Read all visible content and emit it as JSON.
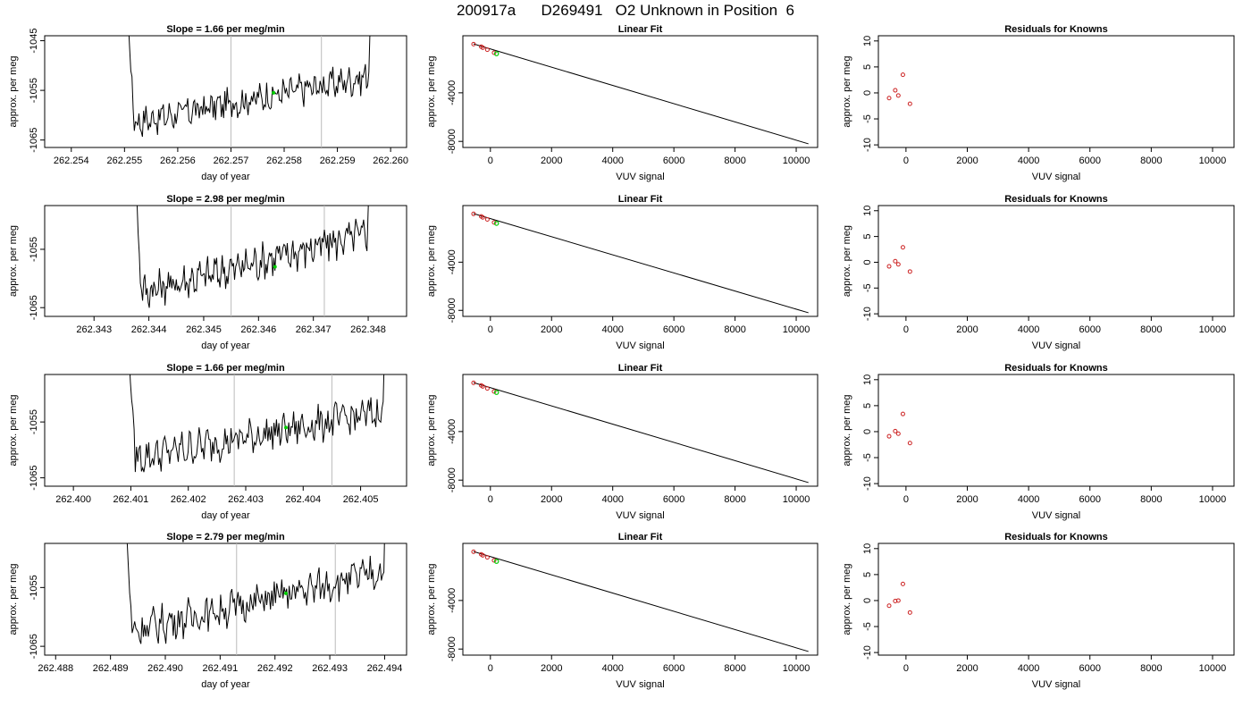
{
  "title": "200917a      D269491   O2 Unknown in Position  6",
  "colors": {
    "axis": "#000000",
    "line": "#000000",
    "marker_green": "#00cc00",
    "point_red": "#cc2222",
    "vline": "#bbbbbb"
  },
  "rows": [
    {
      "slope_title": "Slope =  1.66  per meg/min",
      "time_series": {
        "type": "line",
        "xlabel": "day of year",
        "ylabel": "approx. per meg",
        "xlim": [
          262.2535,
          262.2603
        ],
        "ylim": [
          -1066.5,
          -1044
        ],
        "xticks": [
          "262.254",
          "262.255",
          "262.256",
          "262.257",
          "262.258",
          "262.259",
          "262.260"
        ],
        "yticks": [
          "-1065",
          "-1055",
          "-1045"
        ],
        "x_start": 262.2549,
        "x_end": 262.2597,
        "start_level": -1062,
        "end_level": -1052,
        "vlines": [
          262.257,
          262.2587
        ],
        "marker": {
          "x": 262.2578,
          "y": -1055.5
        }
      },
      "linear_fit": {
        "type": "scatter",
        "title": "Linear Fit",
        "xlabel": "VUV signal",
        "ylabel": "approx. per meg",
        "xlim": [
          -900,
          10700
        ],
        "ylim": [
          -8500,
          700
        ],
        "xticks": [
          0,
          2000,
          4000,
          6000,
          8000,
          10000
        ],
        "yticks": [
          -8000,
          -4000
        ],
        "points": [
          [
            -550,
            10
          ],
          [
            -300,
            -200
          ],
          [
            -250,
            -280
          ],
          [
            -100,
            -450
          ],
          [
            120,
            -700
          ]
        ],
        "green_point": [
          200,
          -780
        ],
        "line": [
          [
            -550,
            30
          ],
          [
            10400,
            -8200
          ]
        ]
      },
      "residuals": {
        "type": "scatter",
        "title": "Residuals for Knowns",
        "xlabel": "VUV signal",
        "ylabel": "approx. per meg",
        "xlim": [
          -900,
          10700
        ],
        "ylim": [
          -10.5,
          11
        ],
        "xticks": [
          0,
          2000,
          4000,
          6000,
          8000,
          10000
        ],
        "yticks": [
          -10,
          -5,
          0,
          5,
          10
        ],
        "points": [
          [
            -550,
            -1.0
          ],
          [
            -350,
            0.5
          ],
          [
            -250,
            -0.5
          ],
          [
            -100,
            3.5
          ],
          [
            130,
            -2.1
          ]
        ]
      }
    },
    {
      "slope_title": "Slope =  2.98  per meg/min",
      "time_series": {
        "type": "line",
        "xlabel": "day of year",
        "ylabel": "approx. per meg",
        "xlim": [
          262.3421,
          262.3487
        ],
        "ylim": [
          -1066.5,
          -1047.5
        ],
        "xticks": [
          "262.343",
          "262.344",
          "262.345",
          "262.346",
          "262.347",
          "262.348"
        ],
        "yticks": [
          "-1065",
          "-1055"
        ],
        "x_start": 262.3436,
        "x_end": 262.3481,
        "start_level": -1063,
        "end_level": -1052,
        "vlines": [
          262.3455,
          262.3472
        ],
        "marker": {
          "x": 262.3463,
          "y": -1058
        }
      },
      "linear_fit": {
        "type": "scatter",
        "title": "Linear Fit",
        "xlabel": "VUV signal",
        "ylabel": "approx. per meg",
        "xlim": [
          -900,
          10700
        ],
        "ylim": [
          -8500,
          700
        ],
        "xticks": [
          0,
          2000,
          4000,
          6000,
          8000,
          10000
        ],
        "yticks": [
          -8000,
          -4000
        ],
        "points": [
          [
            -550,
            10
          ],
          [
            -300,
            -200
          ],
          [
            -250,
            -280
          ],
          [
            -100,
            -450
          ],
          [
            120,
            -700
          ]
        ],
        "green_point": [
          200,
          -780
        ],
        "line": [
          [
            -550,
            30
          ],
          [
            10400,
            -8200
          ]
        ]
      },
      "residuals": {
        "type": "scatter",
        "title": "Residuals for Knowns",
        "xlabel": "VUV signal",
        "ylabel": "approx. per meg",
        "xlim": [
          -900,
          10700
        ],
        "ylim": [
          -10.5,
          11
        ],
        "xticks": [
          0,
          2000,
          4000,
          6000,
          8000,
          10000
        ],
        "yticks": [
          -10,
          -5,
          0,
          5,
          10
        ],
        "points": [
          [
            -550,
            -0.8
          ],
          [
            -350,
            0.2
          ],
          [
            -250,
            -0.4
          ],
          [
            -100,
            2.9
          ],
          [
            130,
            -1.8
          ]
        ]
      }
    },
    {
      "slope_title": "Slope =  1.66  per meg/min",
      "time_series": {
        "type": "line",
        "xlabel": "day of year",
        "ylabel": "approx. per meg",
        "xlim": [
          262.3995,
          262.4058
        ],
        "ylim": [
          -1066.5,
          -1046.5
        ],
        "xticks": [
          "262.400",
          "262.401",
          "262.402",
          "262.403",
          "262.404",
          "262.405"
        ],
        "yticks": [
          "-1065",
          "-1055"
        ],
        "x_start": 262.4008,
        "x_end": 262.4055,
        "start_level": -1062,
        "end_level": -1053,
        "vlines": [
          262.4028,
          262.4045
        ],
        "marker": {
          "x": 262.4037,
          "y": -1056
        }
      },
      "linear_fit": {
        "type": "scatter",
        "title": "Linear Fit",
        "xlabel": "VUV signal",
        "ylabel": "approx. per meg",
        "xlim": [
          -900,
          10700
        ],
        "ylim": [
          -8500,
          700
        ],
        "xticks": [
          0,
          2000,
          4000,
          6000,
          8000,
          10000
        ],
        "yticks": [
          -8000,
          -4000
        ],
        "points": [
          [
            -550,
            10
          ],
          [
            -300,
            -200
          ],
          [
            -250,
            -280
          ],
          [
            -100,
            -450
          ],
          [
            120,
            -700
          ]
        ],
        "green_point": [
          200,
          -780
        ],
        "line": [
          [
            -550,
            30
          ],
          [
            10400,
            -8200
          ]
        ]
      },
      "residuals": {
        "type": "scatter",
        "title": "Residuals for Knowns",
        "xlabel": "VUV signal",
        "ylabel": "approx. per meg",
        "xlim": [
          -900,
          10700
        ],
        "ylim": [
          -10.5,
          11
        ],
        "xticks": [
          0,
          2000,
          4000,
          6000,
          8000,
          10000
        ],
        "yticks": [
          -10,
          -5,
          0,
          5,
          10
        ],
        "points": [
          [
            -550,
            -0.9
          ],
          [
            -350,
            0.1
          ],
          [
            -250,
            -0.4
          ],
          [
            -100,
            3.4
          ],
          [
            130,
            -2.2
          ]
        ]
      }
    },
    {
      "slope_title": "Slope =  2.79  per meg/min",
      "time_series": {
        "type": "line",
        "xlabel": "day of year",
        "ylabel": "approx. per meg",
        "xlim": [
          262.4878,
          262.4944
        ],
        "ylim": [
          -1066.5,
          -1047.5
        ],
        "xticks": [
          "262.488",
          "262.489",
          "262.490",
          "262.491",
          "262.492",
          "262.493",
          "262.494"
        ],
        "yticks": [
          "-1065",
          "-1055"
        ],
        "x_start": 262.4891,
        "x_end": 262.4941,
        "start_level": -1063,
        "end_level": -1052,
        "vlines": [
          262.4913,
          262.4931
        ],
        "marker": {
          "x": 262.4922,
          "y": -1056
        }
      },
      "linear_fit": {
        "type": "scatter",
        "title": "Linear Fit",
        "xlabel": "VUV signal",
        "ylabel": "approx. per meg",
        "xlim": [
          -900,
          10700
        ],
        "ylim": [
          -8500,
          700
        ],
        "xticks": [
          0,
          2000,
          4000,
          6000,
          8000,
          10000
        ],
        "yticks": [
          -8000,
          -4000
        ],
        "points": [
          [
            -550,
            10
          ],
          [
            -300,
            -200
          ],
          [
            -250,
            -280
          ],
          [
            -100,
            -450
          ],
          [
            120,
            -700
          ]
        ],
        "green_point": [
          200,
          -780
        ],
        "line": [
          [
            -550,
            30
          ],
          [
            10400,
            -8200
          ]
        ]
      },
      "residuals": {
        "type": "scatter",
        "title": "Residuals for Knowns",
        "xlabel": "VUV signal",
        "ylabel": "approx. per meg",
        "xlim": [
          -900,
          10700
        ],
        "ylim": [
          -10.5,
          11
        ],
        "xticks": [
          0,
          2000,
          4000,
          6000,
          8000,
          10000
        ],
        "yticks": [
          -10,
          -5,
          0,
          5,
          10
        ],
        "points": [
          [
            -550,
            -1.0
          ],
          [
            -350,
            -0.1
          ],
          [
            -250,
            0.0
          ],
          [
            -100,
            3.2
          ],
          [
            130,
            -2.3
          ]
        ]
      }
    }
  ]
}
